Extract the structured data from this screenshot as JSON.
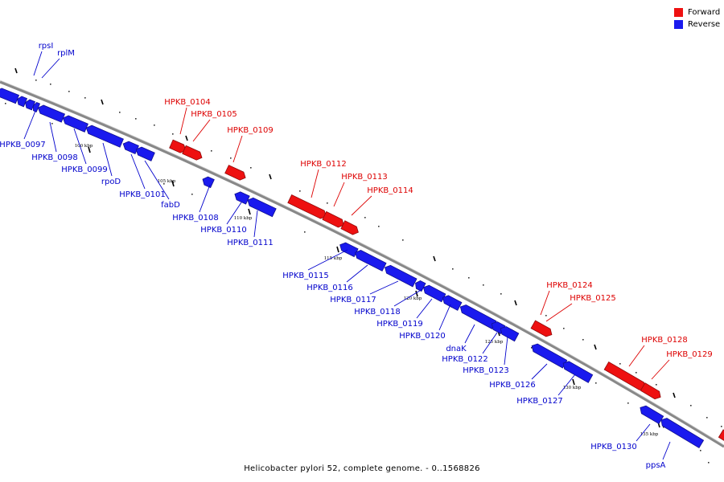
{
  "legend": {
    "forward_label": "Forward",
    "reverse_label": "Reverse",
    "forward_color": "#ee1111",
    "reverse_color": "#1a1aee"
  },
  "colors": {
    "label_forward": "#dd0000",
    "label_reverse": "#0000cc",
    "backbone": "#888888",
    "ruler": "#000000"
  },
  "caption": "Helicobacter pylori 52, complete genome. - 0..1568826",
  "scale_labels": [
    "100 kbp",
    "105 kbp",
    "110 kbp",
    "115 kbp",
    "120 kbp",
    "125 kbp",
    "130 kbp",
    "135 kbp"
  ],
  "genes": {
    "forward": [
      "HPKB_0104",
      "HPKB_0105",
      "HPKB_0109",
      "HPKB_0112",
      "HPKB_0113",
      "HPKB_0114",
      "HPKB_0124",
      "HPKB_0125",
      "HPKB_0128",
      "HPKB_0129"
    ],
    "reverse": [
      "rpsI",
      "rplM",
      "HPKB_0097",
      "HPKB_0098",
      "HPKB_0099",
      "rpoD",
      "HPKB_0101",
      "fabD",
      "HPKB_0108",
      "HPKB_0110",
      "HPKB_0111",
      "HPKB_0115",
      "HPKB_0116",
      "HPKB_0117",
      "HPKB_0118",
      "HPKB_0119",
      "HPKB_0120",
      "dnaK",
      "HPKB_0122",
      "HPKB_0123",
      "HPKB_0126",
      "HPKB_0127",
      "HPKB_0130",
      "ppsA"
    ]
  }
}
